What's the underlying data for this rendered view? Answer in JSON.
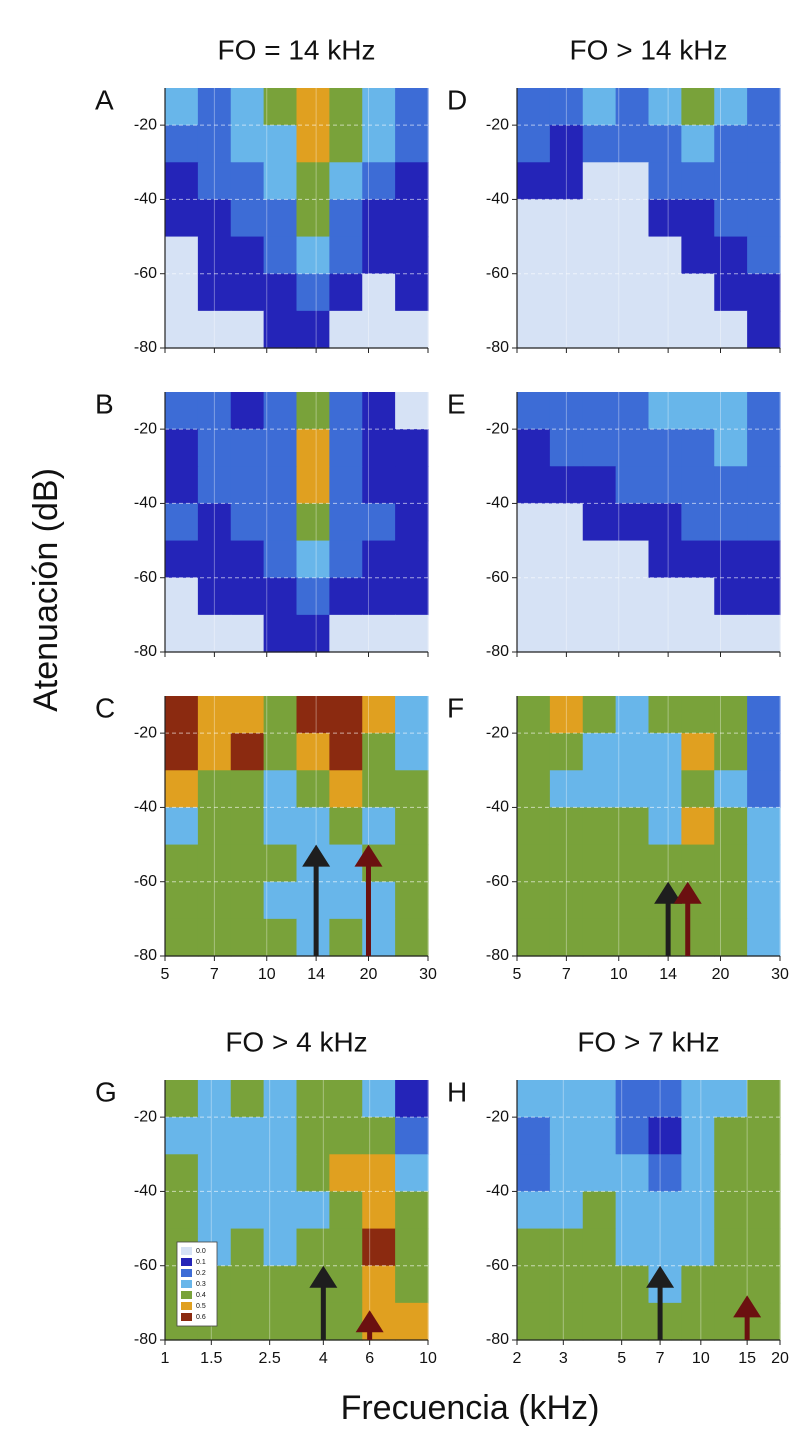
{
  "xlabel": "Frecuencia (kHz)",
  "ylabel": "Atenuación (dB)",
  "levels": [
    {
      "value": 0,
      "label": "0.0",
      "color": "#d6e2f5"
    },
    {
      "value": 0.1,
      "label": "0.1",
      "color": "#2424b8"
    },
    {
      "value": 0.2,
      "label": "0.2",
      "color": "#3d6cd6"
    },
    {
      "value": 0.3,
      "label": "0.3",
      "color": "#68b6ea"
    },
    {
      "value": 0.4,
      "label": "0.4",
      "color": "#79a23a"
    },
    {
      "value": 0.5,
      "label": "0.5",
      "color": "#e0a020"
    },
    {
      "value": 0.6,
      "label": "0.6",
      "color": "#8b2a10"
    }
  ],
  "chart_data": [
    {
      "type": "contour",
      "label": "A",
      "title": "FO = 14 kHz",
      "xscale": "log",
      "xlim": [
        5,
        30
      ],
      "xticks": [
        5,
        7,
        10,
        14,
        20,
        30
      ],
      "show_xtick_labels": false,
      "ylim": [
        -80,
        -10
      ],
      "yticks": [
        -20,
        -40,
        -60,
        -80
      ],
      "grid": true,
      "z": [
        [
          0.3,
          0.2,
          0.3,
          0.4,
          0.5,
          0.4,
          0.3,
          0.2
        ],
        [
          0.2,
          0.2,
          0.3,
          0.3,
          0.5,
          0.4,
          0.3,
          0.2
        ],
        [
          0.1,
          0.2,
          0.2,
          0.3,
          0.4,
          0.3,
          0.2,
          0.1
        ],
        [
          0.1,
          0.1,
          0.2,
          0.2,
          0.4,
          0.2,
          0.1,
          0.1
        ],
        [
          0,
          0.1,
          0.1,
          0.2,
          0.3,
          0.2,
          0.1,
          0.1
        ],
        [
          0,
          0.1,
          0.1,
          0.1,
          0.2,
          0.1,
          0,
          0.1
        ],
        [
          0,
          0,
          0,
          0.1,
          0.1,
          0,
          0,
          0
        ]
      ]
    },
    {
      "type": "contour",
      "label": "B",
      "xscale": "log",
      "xlim": [
        5,
        30
      ],
      "xticks": [
        5,
        7,
        10,
        14,
        20,
        30
      ],
      "show_xtick_labels": false,
      "ylim": [
        -80,
        -10
      ],
      "yticks": [
        -20,
        -40,
        -60,
        -80
      ],
      "grid": true,
      "z": [
        [
          0.2,
          0.2,
          0.1,
          0.2,
          0.4,
          0.2,
          0.1,
          0
        ],
        [
          0.1,
          0.2,
          0.2,
          0.2,
          0.5,
          0.2,
          0.1,
          0.1
        ],
        [
          0.1,
          0.2,
          0.2,
          0.2,
          0.5,
          0.2,
          0.1,
          0.1
        ],
        [
          0.2,
          0.1,
          0.2,
          0.2,
          0.4,
          0.2,
          0.2,
          0.1
        ],
        [
          0.1,
          0.1,
          0.1,
          0.2,
          0.3,
          0.2,
          0.1,
          0.1
        ],
        [
          0,
          0.1,
          0.1,
          0.1,
          0.2,
          0.1,
          0.1,
          0.1
        ],
        [
          0,
          0,
          0,
          0.1,
          0.1,
          0,
          0,
          0
        ]
      ]
    },
    {
      "type": "contour",
      "label": "C",
      "xscale": "log",
      "xlim": [
        5,
        30
      ],
      "xticks": [
        5,
        7,
        10,
        14,
        20,
        30
      ],
      "show_xtick_labels": true,
      "ylim": [
        -80,
        -10
      ],
      "yticks": [
        -20,
        -40,
        -60,
        -80
      ],
      "grid": true,
      "z": [
        [
          0.6,
          0.5,
          0.5,
          0.4,
          0.6,
          0.6,
          0.5,
          0.3
        ],
        [
          0.6,
          0.5,
          0.6,
          0.4,
          0.5,
          0.6,
          0.4,
          0.3
        ],
        [
          0.5,
          0.4,
          0.4,
          0.3,
          0.4,
          0.5,
          0.4,
          0.4
        ],
        [
          0.3,
          0.4,
          0.4,
          0.3,
          0.3,
          0.4,
          0.3,
          0.4
        ],
        [
          0.4,
          0.4,
          0.4,
          0.4,
          0.3,
          0.3,
          0.4,
          0.4
        ],
        [
          0.4,
          0.4,
          0.4,
          0.3,
          0.3,
          0.3,
          0.3,
          0.4
        ],
        [
          0.4,
          0.4,
          0.4,
          0.4,
          0.3,
          0.4,
          0.3,
          0.4
        ]
      ],
      "arrows": [
        {
          "x": 14,
          "y": -50,
          "color": "#1e1e1e"
        },
        {
          "x": 20,
          "y": -50,
          "color": "#6b1010"
        }
      ]
    },
    {
      "type": "contour",
      "label": "D",
      "title": "FO > 14 kHz",
      "xscale": "log",
      "xlim": [
        5,
        30
      ],
      "xticks": [
        5,
        7,
        10,
        14,
        20,
        30
      ],
      "show_xtick_labels": false,
      "ylim": [
        -80,
        -10
      ],
      "yticks": [
        -20,
        -40,
        -60,
        -80
      ],
      "grid": true,
      "z": [
        [
          0.2,
          0.2,
          0.3,
          0.2,
          0.3,
          0.4,
          0.3,
          0.2
        ],
        [
          0.2,
          0.1,
          0.2,
          0.2,
          0.2,
          0.3,
          0.2,
          0.2
        ],
        [
          0.1,
          0.1,
          0,
          0,
          0.2,
          0.2,
          0.2,
          0.2
        ],
        [
          0,
          0,
          0,
          0,
          0.1,
          0.1,
          0.2,
          0.2
        ],
        [
          0,
          0,
          0,
          0,
          0,
          0.1,
          0.1,
          0.2
        ],
        [
          0,
          0,
          0,
          0,
          0,
          0,
          0.1,
          0.1
        ],
        [
          0,
          0,
          0,
          0,
          0,
          0,
          0,
          0.1
        ]
      ]
    },
    {
      "type": "contour",
      "label": "E",
      "xscale": "log",
      "xlim": [
        5,
        30
      ],
      "xticks": [
        5,
        7,
        10,
        14,
        20,
        30
      ],
      "show_xtick_labels": false,
      "ylim": [
        -80,
        -10
      ],
      "yticks": [
        -20,
        -40,
        -60,
        -80
      ],
      "grid": true,
      "z": [
        [
          0.2,
          0.2,
          0.2,
          0.2,
          0.3,
          0.3,
          0.3,
          0.2
        ],
        [
          0.1,
          0.2,
          0.2,
          0.2,
          0.2,
          0.2,
          0.3,
          0.2
        ],
        [
          0.1,
          0.1,
          0.1,
          0.2,
          0.2,
          0.2,
          0.2,
          0.2
        ],
        [
          0,
          0,
          0.1,
          0.1,
          0.1,
          0.2,
          0.2,
          0.2
        ],
        [
          0,
          0,
          0,
          0,
          0.1,
          0.1,
          0.1,
          0.1
        ],
        [
          0,
          0,
          0,
          0,
          0,
          0,
          0.1,
          0.1
        ],
        [
          0,
          0,
          0,
          0,
          0,
          0,
          0,
          0
        ]
      ]
    },
    {
      "type": "contour",
      "label": "F",
      "xscale": "log",
      "xlim": [
        5,
        30
      ],
      "xticks": [
        5,
        7,
        10,
        14,
        20,
        30
      ],
      "show_xtick_labels": true,
      "ylim": [
        -80,
        -10
      ],
      "yticks": [
        -20,
        -40,
        -60,
        -80
      ],
      "grid": true,
      "z": [
        [
          0.4,
          0.5,
          0.4,
          0.3,
          0.4,
          0.4,
          0.4,
          0.2
        ],
        [
          0.4,
          0.4,
          0.3,
          0.3,
          0.3,
          0.5,
          0.4,
          0.2
        ],
        [
          0.4,
          0.3,
          0.3,
          0.3,
          0.3,
          0.4,
          0.3,
          0.2
        ],
        [
          0.4,
          0.4,
          0.4,
          0.4,
          0.3,
          0.5,
          0.4,
          0.3
        ],
        [
          0.4,
          0.4,
          0.4,
          0.4,
          0.4,
          0.4,
          0.4,
          0.3
        ],
        [
          0.4,
          0.4,
          0.4,
          0.4,
          0.4,
          0.4,
          0.4,
          0.3
        ],
        [
          0.4,
          0.4,
          0.4,
          0.4,
          0.4,
          0.4,
          0.4,
          0.3
        ]
      ],
      "arrows": [
        {
          "x": 14,
          "y": -60,
          "color": "#1e1e1e"
        },
        {
          "x": 16,
          "y": -60,
          "color": "#6b1010"
        }
      ]
    },
    {
      "type": "contour",
      "label": "G",
      "title": "FO > 4 kHz",
      "xscale": "log",
      "xlim": [
        1,
        10
      ],
      "xticks": [
        1,
        1.5,
        2.5,
        4,
        6,
        10
      ],
      "show_xtick_labels": true,
      "ylim": [
        -80,
        -10
      ],
      "yticks": [
        -20,
        -40,
        -60,
        -80
      ],
      "grid": true,
      "legend": "lower left",
      "z": [
        [
          0.4,
          0.3,
          0.4,
          0.3,
          0.4,
          0.4,
          0.3,
          0.1
        ],
        [
          0.3,
          0.3,
          0.3,
          0.3,
          0.4,
          0.4,
          0.4,
          0.2
        ],
        [
          0.4,
          0.3,
          0.3,
          0.3,
          0.4,
          0.5,
          0.5,
          0.3
        ],
        [
          0.4,
          0.3,
          0.3,
          0.3,
          0.3,
          0.4,
          0.5,
          0.4
        ],
        [
          0.4,
          0.3,
          0.4,
          0.3,
          0.4,
          0.4,
          0.6,
          0.4
        ],
        [
          0.4,
          0.4,
          0.4,
          0.4,
          0.4,
          0.4,
          0.5,
          0.4
        ],
        [
          0.4,
          0.4,
          0.4,
          0.4,
          0.4,
          0.4,
          0.5,
          0.5
        ]
      ],
      "arrows": [
        {
          "x": 4,
          "y": -60,
          "color": "#1e1e1e"
        },
        {
          "x": 6,
          "y": -72,
          "color": "#6b1010"
        }
      ]
    },
    {
      "type": "contour",
      "label": "H",
      "title": "FO > 7 kHz",
      "xscale": "log",
      "xlim": [
        2,
        20
      ],
      "xticks": [
        2,
        3,
        5,
        7,
        10,
        15,
        20
      ],
      "show_xtick_labels": true,
      "ylim": [
        -80,
        -10
      ],
      "yticks": [
        -20,
        -40,
        -60,
        -80
      ],
      "grid": true,
      "z": [
        [
          0.3,
          0.3,
          0.3,
          0.2,
          0.2,
          0.3,
          0.3,
          0.4
        ],
        [
          0.2,
          0.3,
          0.3,
          0.2,
          0.1,
          0.3,
          0.4,
          0.4
        ],
        [
          0.2,
          0.3,
          0.3,
          0.3,
          0.2,
          0.3,
          0.4,
          0.4
        ],
        [
          0.3,
          0.3,
          0.4,
          0.3,
          0.3,
          0.3,
          0.4,
          0.4
        ],
        [
          0.4,
          0.4,
          0.4,
          0.3,
          0.3,
          0.3,
          0.4,
          0.4
        ],
        [
          0.4,
          0.4,
          0.4,
          0.4,
          0.3,
          0.4,
          0.4,
          0.4
        ],
        [
          0.4,
          0.4,
          0.4,
          0.4,
          0.4,
          0.4,
          0.4,
          0.4
        ]
      ],
      "arrows": [
        {
          "x": 7,
          "y": -60,
          "color": "#1e1e1e"
        },
        {
          "x": 15,
          "y": -68,
          "color": "#6b1010"
        }
      ]
    }
  ]
}
